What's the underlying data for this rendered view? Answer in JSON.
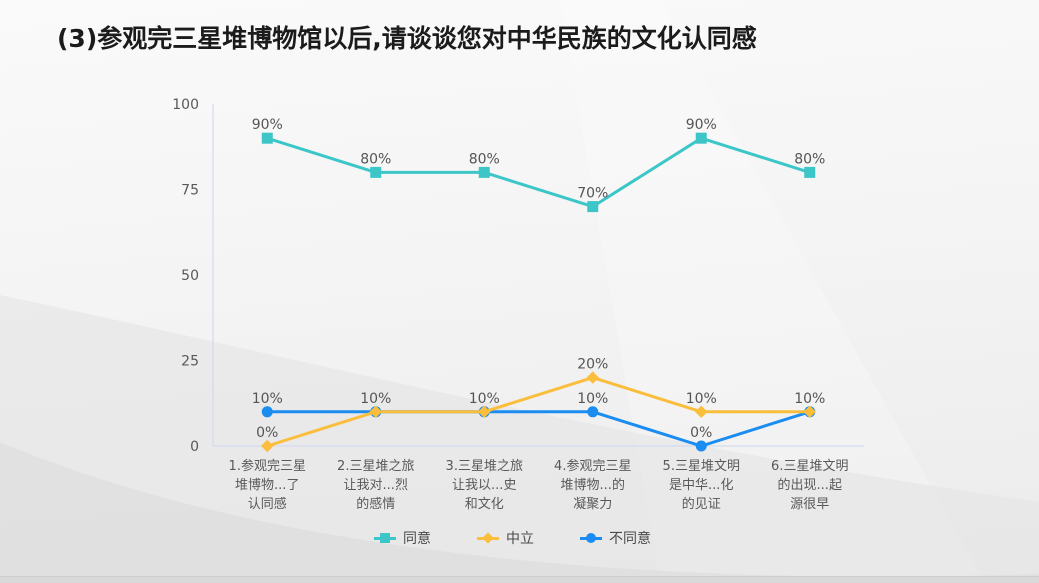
{
  "slide": {
    "title": "(3)参观完三星堆博物馆以后,请谈谈您对中华民族的文化认同感"
  },
  "chart_data": {
    "type": "line",
    "categories": [
      "1.参观完三星\n堆博物...了\n认同感",
      "2.三星堆之旅\n让我对...烈\n的感情",
      "3.三星堆之旅\n让我以...史\n和文化",
      "4.参观完三星\n堆博物...的\n凝聚力",
      "5.三星堆文明\n是中华...化\n的见证",
      "6.三星堆文明\n的出现...起\n源很早"
    ],
    "series": [
      {
        "name": "同意",
        "marker": "square",
        "color": "#3cc6c8",
        "values": [
          90,
          80,
          80,
          70,
          90,
          80
        ]
      },
      {
        "name": "中立",
        "marker": "diamond",
        "color": "#fabd3c",
        "values": [
          0,
          10,
          10,
          20,
          10,
          10
        ]
      },
      {
        "name": "不同意",
        "marker": "circle",
        "color": "#1b8cf0",
        "values": [
          10,
          10,
          10,
          10,
          0,
          10
        ]
      }
    ],
    "y_ticks": [
      0,
      25,
      50,
      75,
      100
    ],
    "ylim": [
      0,
      100
    ],
    "data_labels": true,
    "data_label_suffix": "%",
    "grid": false,
    "legend_position": "bottom",
    "axis_color": "#cdd6ee",
    "tick_label_color": "#595959",
    "category_label_color": "#595959",
    "data_label_color": "#555555"
  }
}
